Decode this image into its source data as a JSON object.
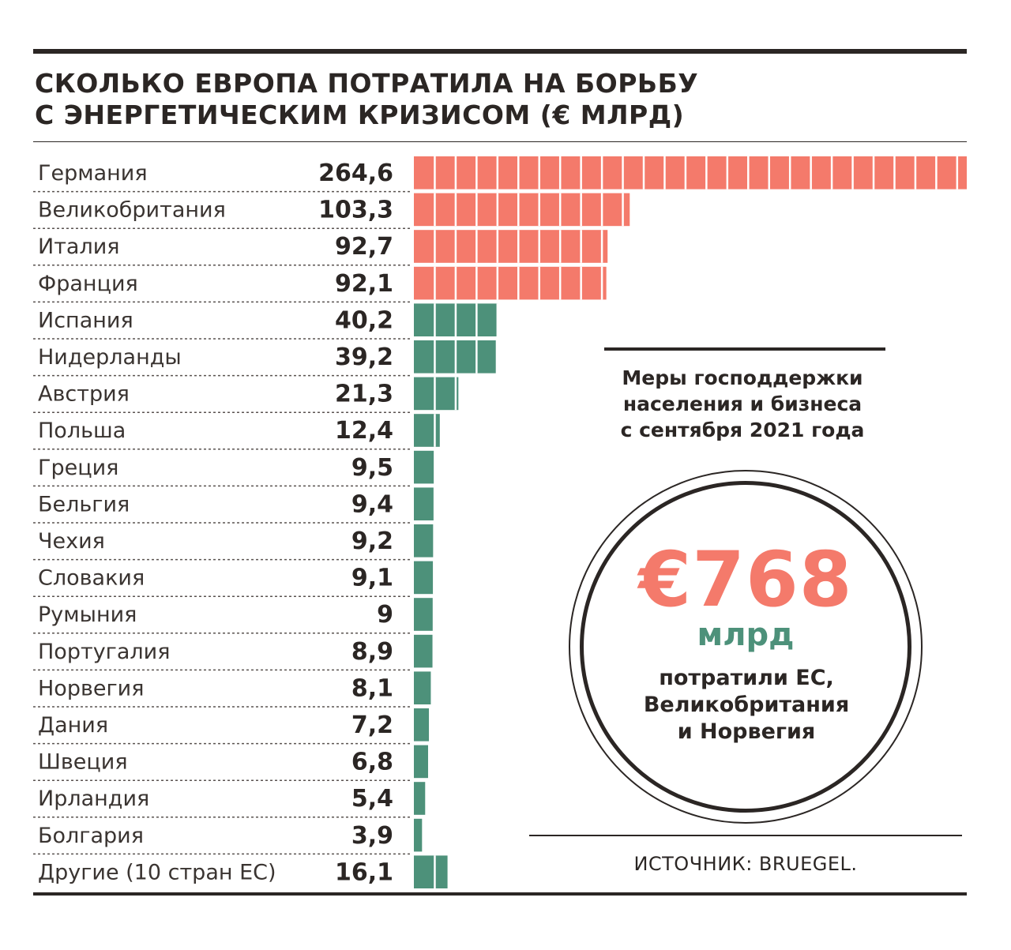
{
  "title": {
    "line1": "СКОЛЬКО ЕВРОПА ПОТРАТИЛА НА БОРЬБУ",
    "line2": "С ЭНЕРГЕТИЧЕСКИМ КРИЗИСОМ (€ МЛРД)"
  },
  "colors": {
    "high": "#f47a6b",
    "low": "#4d917a",
    "ink": "#2b2624"
  },
  "chart_data": {
    "type": "bar",
    "orientation": "horizontal",
    "unit": "€ млрд",
    "categories": [
      "Германия",
      "Великобритания",
      "Италия",
      "Франция",
      "Испания",
      "Нидерланды",
      "Австрия",
      "Польша",
      "Греция",
      "Бельгия",
      "Чехия",
      "Словакия",
      "Румыния",
      "Португалия",
      "Норвегия",
      "Дания",
      "Швеция",
      "Ирландия",
      "Болгария",
      "Другие (10 стран ЕС)"
    ],
    "values": [
      264.6,
      103.3,
      92.7,
      92.1,
      40.2,
      39.2,
      21.3,
      12.4,
      9.5,
      9.4,
      9.2,
      9.1,
      9,
      8.9,
      8.1,
      7.2,
      6.8,
      5.4,
      3.9,
      16.1
    ],
    "value_labels": [
      "264,6",
      "103,3",
      "92,7",
      "92,1",
      "40,2",
      "39,2",
      "21,3",
      "12,4",
      "9,5",
      "9,4",
      "9,2",
      "9,1",
      "9",
      "8,9",
      "8,1",
      "7,2",
      "6,8",
      "5,4",
      "3,9",
      "16,1"
    ],
    "bar_colors": [
      "high",
      "high",
      "high",
      "high",
      "low",
      "low",
      "low",
      "low",
      "low",
      "low",
      "low",
      "low",
      "low",
      "low",
      "low",
      "low",
      "low",
      "low",
      "low",
      "low"
    ],
    "segment_size": 10
  },
  "panel": {
    "subtitle_lines": [
      "Меры господдержки",
      "населения и бизнеса",
      "с сентября 2021 года"
    ],
    "total": "€768",
    "unit": "млрд",
    "caption_lines": [
      "потратили ЕС,",
      "Великобритания",
      "и Норвегия"
    ]
  },
  "source": "ИСТОЧНИК: BRUEGEL."
}
